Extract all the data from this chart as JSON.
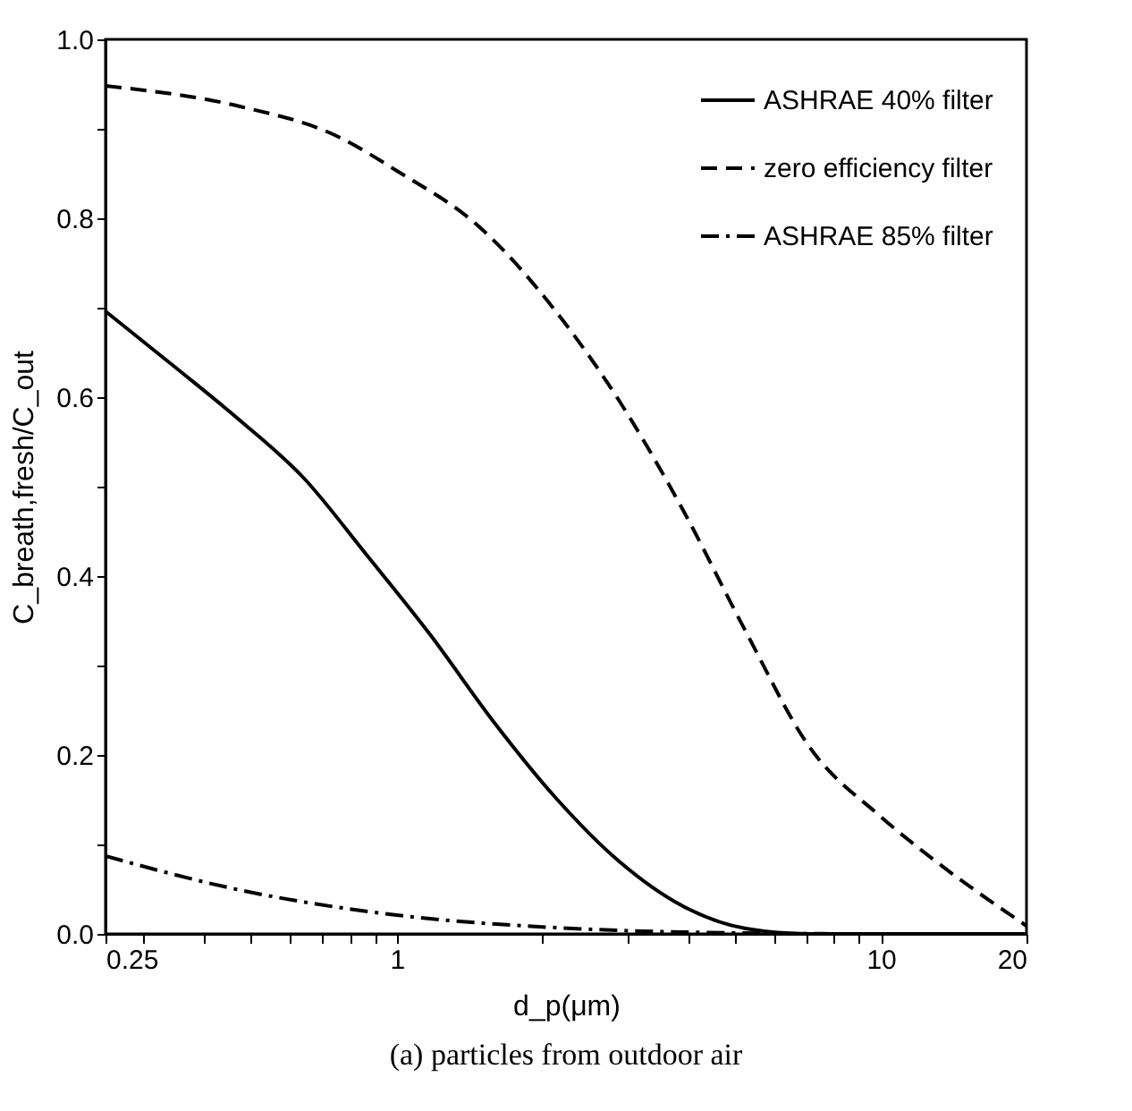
{
  "chart_data": {
    "type": "line",
    "xlabel": "d_p(μm)",
    "ylabel": "C_breath,fresh/C_out",
    "log": "x",
    "legend": "top right",
    "grid": false,
    "xlim": [
      0.25,
      20
    ],
    "ylim": [
      0,
      1.0
    ],
    "xticks": [
      {
        "value": 0.25,
        "label": "0.25"
      },
      {
        "value": 0.3,
        "label": null
      },
      {
        "value": 0.4,
        "label": null
      },
      {
        "value": 0.5,
        "label": null
      },
      {
        "value": 0.6,
        "label": null
      },
      {
        "value": 0.7,
        "label": null
      },
      {
        "value": 0.8,
        "label": null
      },
      {
        "value": 0.9,
        "label": null
      },
      1,
      {
        "value": 2,
        "label": null
      },
      {
        "value": 3,
        "label": null
      },
      {
        "value": 4,
        "label": null
      },
      {
        "value": 5,
        "label": null
      },
      {
        "value": 6,
        "label": null
      },
      {
        "value": 7,
        "label": null
      },
      {
        "value": 8,
        "label": null
      },
      {
        "value": 9,
        "label": null
      },
      10,
      20
    ],
    "yticks": [
      {
        "value": 0,
        "label": "0.0"
      },
      {
        "value": 0.1,
        "label": null
      },
      0.2,
      {
        "value": 0.3,
        "label": null
      },
      0.4,
      {
        "value": 0.5,
        "label": null
      },
      0.6,
      {
        "value": 0.7,
        "label": null
      },
      0.8,
      {
        "value": 0.9,
        "label": null
      },
      {
        "value": 1.0,
        "label": "1.0"
      }
    ],
    "annotations": [
      "(a) particles from outdoor air"
    ],
    "series": [
      {
        "name": "ASHRAE 40% filter",
        "color": "#000000",
        "line_style": "solid",
        "x": [
          0.25,
          0.351,
          0.474,
          0.641,
          0.865,
          1.17,
          1.58,
          2.13,
          2.88,
          3.9,
          5.26,
          7.1,
          10,
          20
        ],
        "values": [
          0.696,
          0.632,
          0.574,
          0.51,
          0.424,
          0.335,
          0.238,
          0.152,
          0.081,
          0.031,
          0.006,
          0.0,
          0.0,
          0.0
        ]
      },
      {
        "name": "zero efficiency filter",
        "color": "#000000",
        "line_style": "dashed",
        "x": [
          0.25,
          0.474,
          0.744,
          1.0,
          1.49,
          2.13,
          2.88,
          3.9,
          5.26,
          7.1,
          10,
          13.0,
          20
        ],
        "values": [
          0.948,
          0.925,
          0.893,
          0.853,
          0.789,
          0.696,
          0.596,
          0.474,
          0.338,
          0.21,
          0.131,
          0.081,
          0.009
        ]
      },
      {
        "name": "ASHRAE 85% filter",
        "color": "#000000",
        "line_style": "dashdot",
        "x": [
          0.25,
          0.474,
          1.0,
          2.13,
          3.9,
          10,
          20
        ],
        "values": [
          0.087,
          0.049,
          0.021,
          0.007,
          0.002,
          0.0,
          0.0
        ]
      }
    ]
  }
}
